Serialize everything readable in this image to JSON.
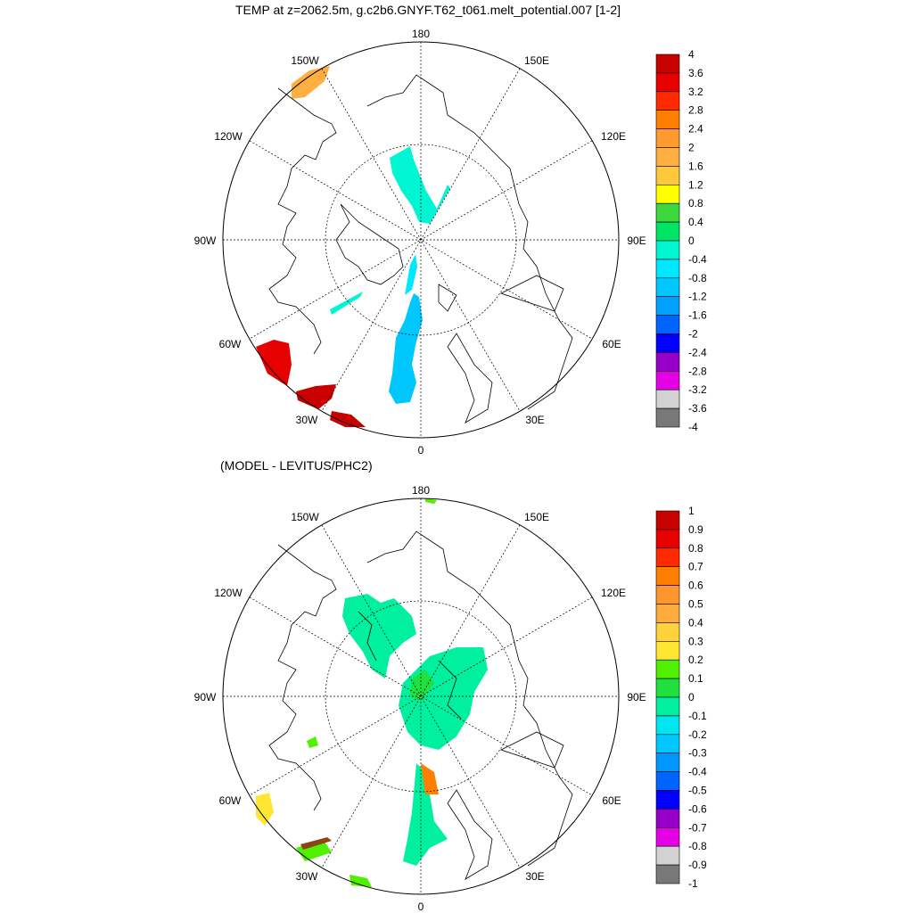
{
  "panels": [
    {
      "title": "TEMP at z=2062.5m, g.c2b6.GNYF.T62_t061.melt_potential.007 [1-2]",
      "lon_labels": {
        "top": "180",
        "bottom": "0",
        "left": "90W",
        "right": "90E",
        "upper_left_1": "150W",
        "upper_left_2": "120W",
        "lower_left_1": "60W",
        "lower_left_2": "30W",
        "upper_right_1": "150E",
        "upper_right_2": "120E",
        "lower_right_1": "60E",
        "lower_right_2": "30E"
      },
      "colorbar": {
        "labels": [
          "4",
          "3.6",
          "3.2",
          "2.8",
          "2.4",
          "2",
          "1.6",
          "1.2",
          "0.8",
          "0.4",
          "0",
          "-0.4",
          "-0.8",
          "-1.2",
          "-1.6",
          "-2",
          "-2.4",
          "-2.8",
          "-3.2",
          "-3.6",
          "-4"
        ],
        "colors": [
          "#c80000",
          "#e60000",
          "#ff2a00",
          "#ff7f00",
          "#ff9a2e",
          "#ffae42",
          "#ffc83c",
          "#ffff00",
          "#3cd83c",
          "#00e664",
          "#00f5d2",
          "#00e8ff",
          "#00c8ff",
          "#00a0ff",
          "#0064ff",
          "#0000ff",
          "#9600c8",
          "#e600e6",
          "#d2d2d2",
          "#787878"
        ]
      }
    },
    {
      "title": "(MODEL - LEVITUS/PHC2)",
      "lon_labels": {
        "top": "180",
        "bottom": "0",
        "left": "90W",
        "right": "90E",
        "upper_left_1": "150W",
        "upper_left_2": "120W",
        "lower_left_1": "60W",
        "lower_left_2": "30W",
        "upper_right_1": "150E",
        "upper_right_2": "120E",
        "lower_right_1": "60E",
        "lower_right_2": "30E"
      },
      "colorbar": {
        "labels": [
          "1",
          "0.9",
          "0.8",
          "0.7",
          "0.6",
          "0.5",
          "0.4",
          "0.3",
          "0.2",
          "0.1",
          "0",
          "-0.1",
          "-0.2",
          "-0.3",
          "-0.4",
          "-0.5",
          "-0.6",
          "-0.7",
          "-0.8",
          "-0.9",
          "-1"
        ],
        "colors": [
          "#c80000",
          "#e60000",
          "#ff2a00",
          "#ff7f00",
          "#ff962d",
          "#ffaa3c",
          "#ffd23c",
          "#ffe632",
          "#50f000",
          "#20e040",
          "#00f0a0",
          "#00e6f0",
          "#00c8ff",
          "#0096ff",
          "#0064ff",
          "#0000ff",
          "#9600c8",
          "#e600e6",
          "#d2d2d2",
          "#787878"
        ]
      }
    }
  ]
}
